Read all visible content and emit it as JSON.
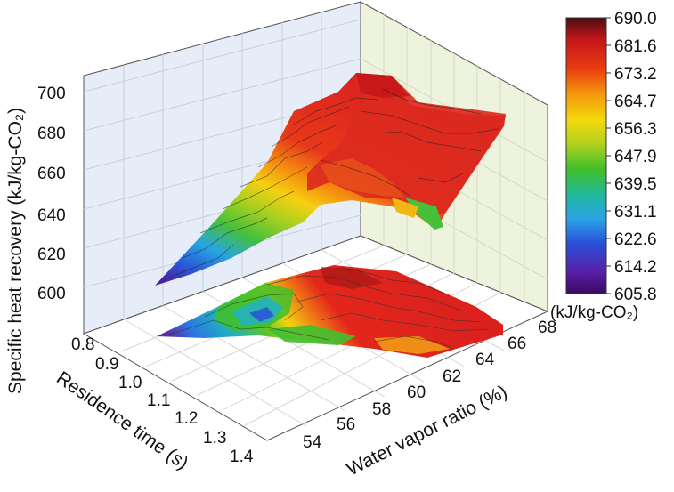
{
  "chart_data": {
    "type": "surface3d",
    "title": "",
    "zlabel": "Specific heat recovery (kJ/kg-CO₂)",
    "xlabel": "Residence time (s)",
    "ylabel": "Water vapor ratio (%)",
    "x_ticks": [
      "0.8",
      "0.9",
      "1.0",
      "1.1",
      "1.2",
      "1.3",
      "1.4"
    ],
    "y_ticks": [
      "54",
      "56",
      "58",
      "60",
      "62",
      "64",
      "66",
      "68"
    ],
    "z_ticks": [
      "600",
      "620",
      "640",
      "660",
      "680",
      "700"
    ],
    "zlim": [
      590,
      700
    ],
    "colorbar": {
      "ticks": [
        "690.0",
        "681.6",
        "673.2",
        "664.7",
        "656.3",
        "647.9",
        "639.5",
        "631.1",
        "622.6",
        "614.2",
        "605.8"
      ],
      "label": "(kJ/kg-CO₂)",
      "range": [
        605.8,
        690.0
      ]
    },
    "surface": {
      "description_points_z": [
        605.8,
        622.6,
        639.5,
        656.3,
        664.7,
        673.2,
        681.6
      ]
    }
  },
  "colors": {
    "back_wall": "#e8eef8",
    "right_wall": "#eef3dc",
    "floor": "#ffffff",
    "grid": "#c8c8c8"
  }
}
